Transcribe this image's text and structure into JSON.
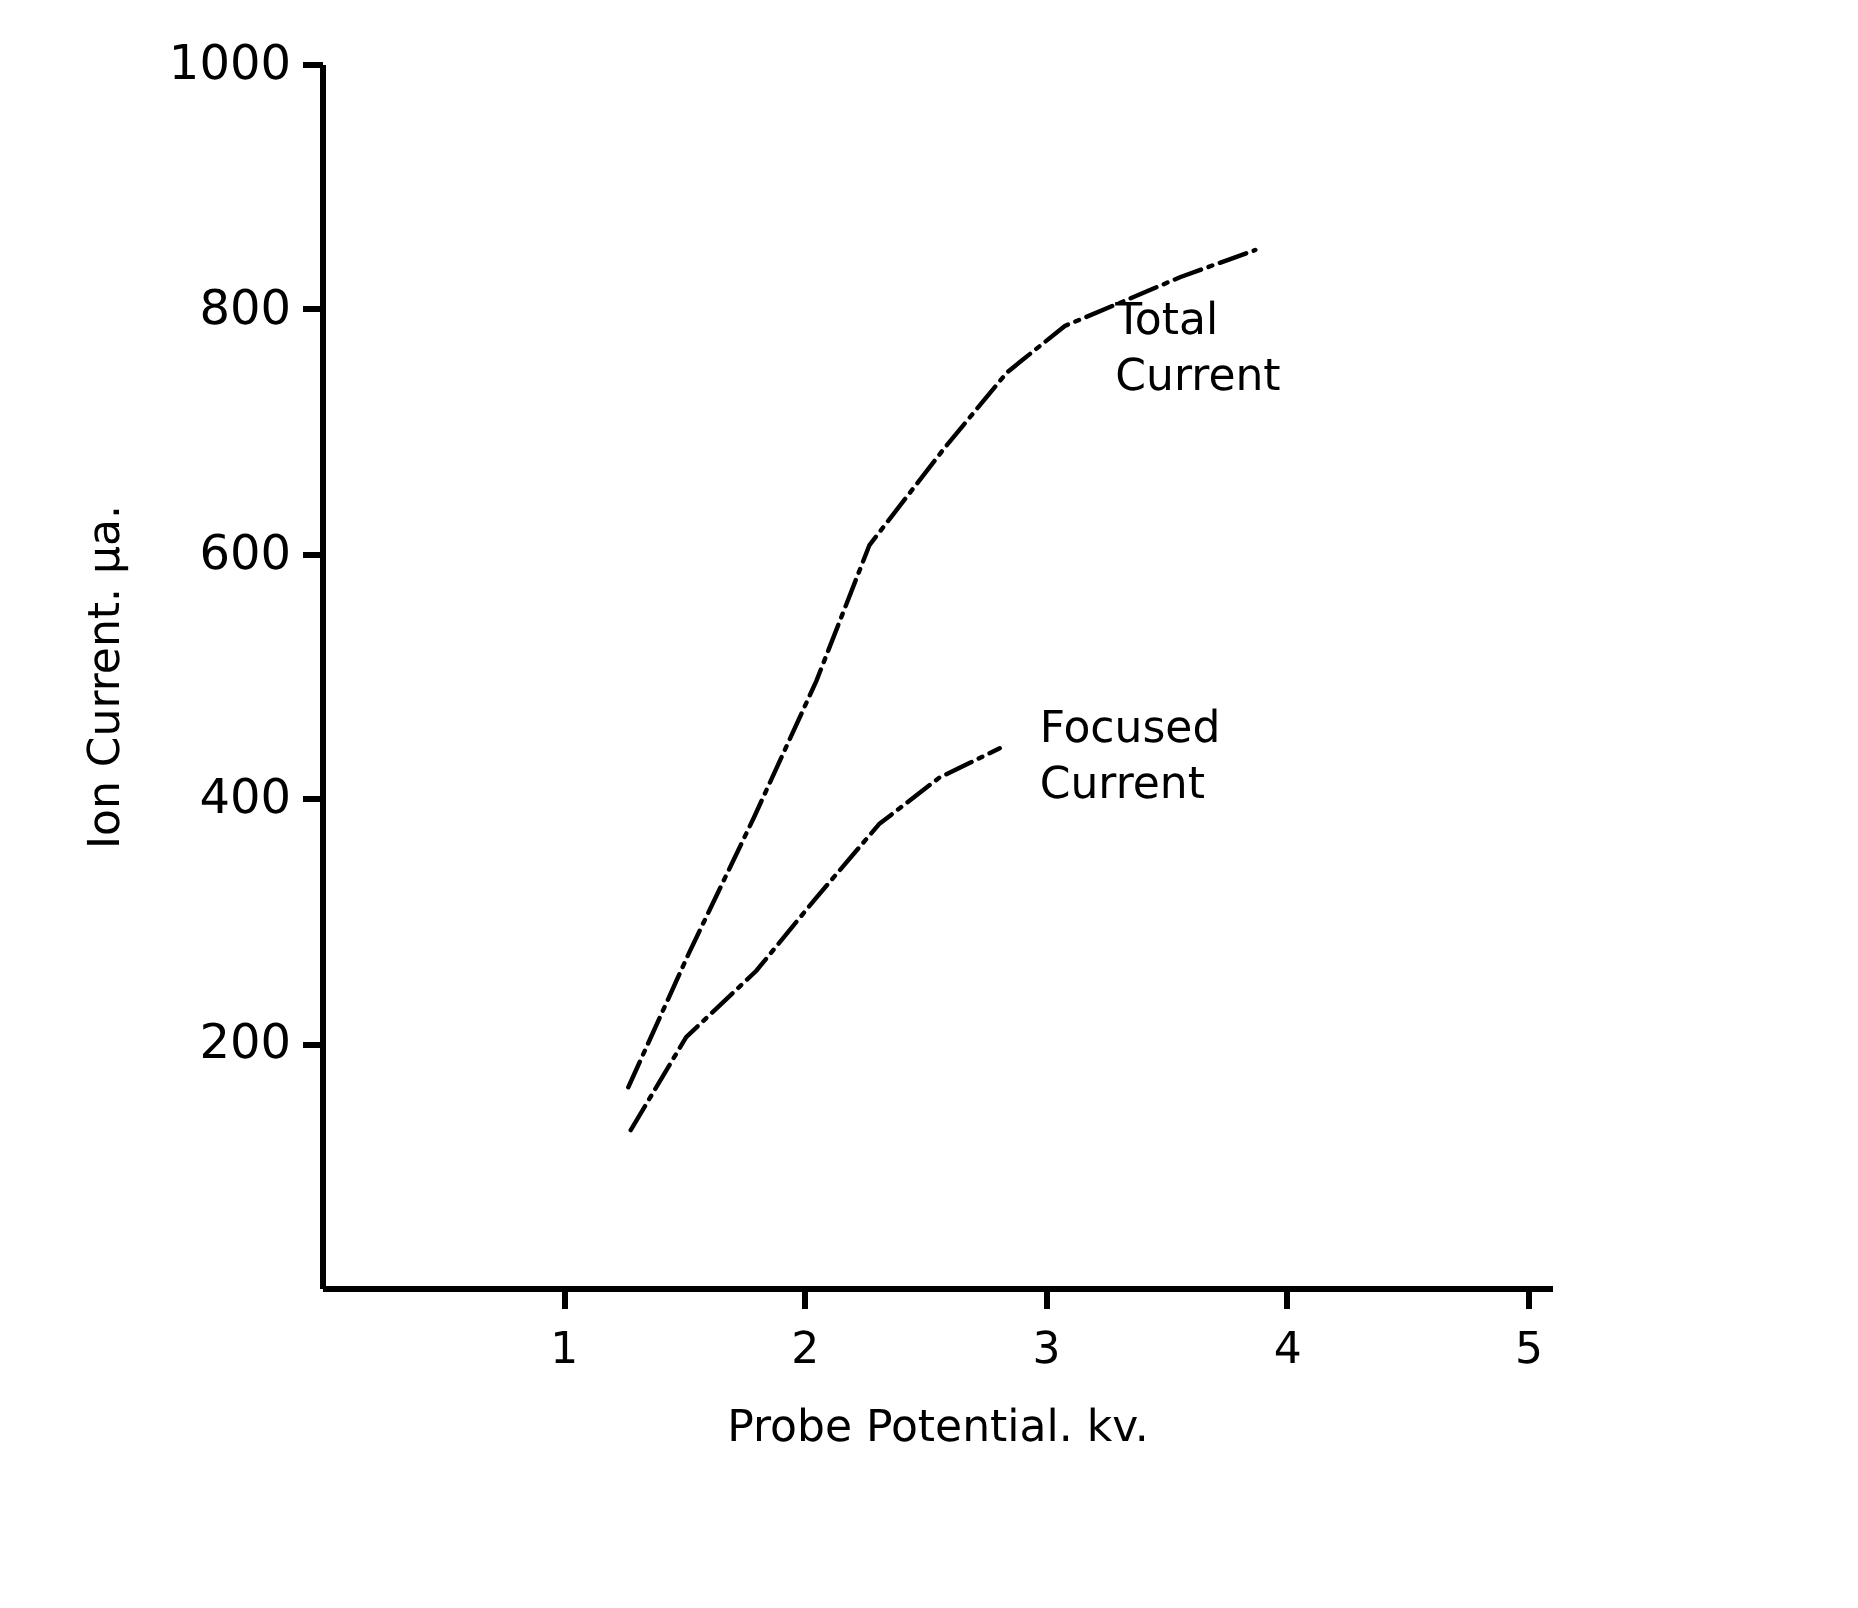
{
  "chart_data": {
    "type": "line",
    "xlabel": "Probe Potential.  kv.",
    "ylabel": "Ion Current.  μa.",
    "xlim": [
      0,
      5.1
    ],
    "xticks": [
      1,
      2,
      3,
      4,
      5
    ],
    "ylim": [
      0,
      1000
    ],
    "yticks": [
      200,
      400,
      600,
      800,
      1000
    ],
    "grid": false,
    "marker": "none",
    "line_style": "dashed",
    "series": [
      {
        "name": "Total Current",
        "color": "#000000",
        "x": [
          1.27,
          1.52,
          1.79,
          2.05,
          2.27,
          2.58,
          2.84,
          3.08,
          3.31,
          3.56,
          3.87
        ],
        "values": [
          164,
          273,
          384,
          496,
          607,
          686,
          748,
          786,
          805,
          826,
          848
        ]
      },
      {
        "name": "Focused Current",
        "color": "#000000",
        "x": [
          1.28,
          1.51,
          1.8,
          2.05,
          2.31,
          2.56,
          2.81
        ],
        "values": [
          129,
          205,
          259,
          319,
          379,
          417,
          441
        ]
      }
    ]
  }
}
